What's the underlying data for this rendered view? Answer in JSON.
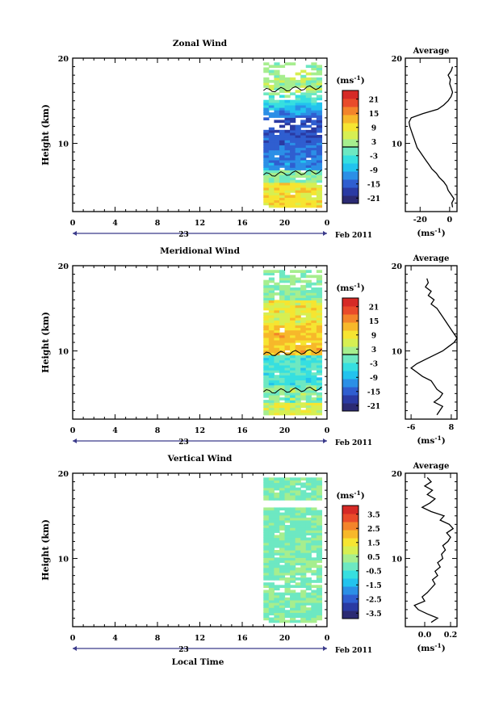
{
  "figure": {
    "xlabel_bottom": "Local Time",
    "date_label": "Feb 2011",
    "day_label": "23"
  },
  "chart_data": [
    {
      "type": "heatmap",
      "title": "Zonal Wind",
      "ylabel": "Height (km)",
      "xlabel": "Local Time",
      "xlim": [
        0,
        24
      ],
      "ylim": [
        2,
        20
      ],
      "xticks": [
        "0",
        "4",
        "8",
        "12",
        "16",
        "20",
        "0"
      ],
      "yticks": [
        "10",
        "20"
      ],
      "data_x_range": [
        18,
        23.5
      ],
      "colorbar": {
        "unit": "(ms⁻¹)",
        "ticks": [
          "21",
          "15",
          "9",
          "3",
          "-3",
          "-9",
          "-15",
          "-21"
        ],
        "range": [
          -24,
          24
        ],
        "zero_contour": true
      },
      "profile": {
        "title": "Average",
        "xlabel": "(ms⁻¹)",
        "xticks": [
          "-20",
          "0"
        ],
        "xlim": [
          -30,
          5
        ],
        "yticks": [
          "10",
          "20"
        ],
        "heights": [
          2.5,
          3,
          3.5,
          4,
          4.5,
          5,
          5.5,
          6,
          6.5,
          7,
          7.5,
          8,
          8.5,
          9,
          9.5,
          10,
          10.5,
          11,
          11.5,
          12,
          12.5,
          13,
          13.5,
          14,
          14.5,
          15,
          15.5,
          16,
          16.5,
          17,
          17.5,
          18,
          18.5,
          19
        ],
        "values": [
          2,
          1.5,
          3,
          1,
          -1,
          -2,
          -4,
          -7,
          -9,
          -12,
          -14,
          -16,
          -18,
          -20,
          -22,
          -23,
          -24,
          -25,
          -26,
          -27,
          -27.5,
          -26,
          -18,
          -8,
          -4,
          -1,
          1,
          2,
          1,
          0,
          0.5,
          -1,
          1,
          2
        ]
      }
    },
    {
      "type": "heatmap",
      "title": "Meridional Wind",
      "ylabel": "Height (km)",
      "xlabel": "Local Time",
      "xlim": [
        0,
        24
      ],
      "ylim": [
        2,
        20
      ],
      "xticks": [
        "0",
        "4",
        "8",
        "12",
        "16",
        "20",
        "0"
      ],
      "yticks": [
        "10",
        "20"
      ],
      "data_x_range": [
        18,
        23.5
      ],
      "colorbar": {
        "unit": "(ms⁻¹)",
        "ticks": [
          "21",
          "15",
          "9",
          "3",
          "-3",
          "-9",
          "-15",
          "-21"
        ],
        "range": [
          -24,
          24
        ],
        "zero_contour": true
      },
      "profile": {
        "title": "Average",
        "xlabel": "(ms⁻¹)",
        "xticks": [
          "-6",
          "8"
        ],
        "xlim": [
          -8,
          10
        ],
        "yticks": [
          "10",
          "20"
        ],
        "heights": [
          2.5,
          3,
          3.5,
          4,
          4.5,
          5,
          5.5,
          6,
          6.5,
          7,
          7.5,
          8,
          8.5,
          9,
          9.5,
          10,
          10.5,
          11,
          11.5,
          12,
          12.5,
          13,
          13.5,
          14,
          14.5,
          15,
          15.5,
          16,
          16.5,
          17,
          17.5,
          18,
          18.5
        ],
        "values": [
          3,
          4,
          5,
          2,
          4,
          5,
          3,
          2,
          1,
          -2,
          -4,
          -6,
          -4,
          -1,
          2,
          5,
          7,
          9,
          10,
          9,
          8,
          7,
          6,
          5,
          4,
          3,
          1,
          2,
          0,
          1,
          -1,
          0,
          -0.5
        ]
      }
    },
    {
      "type": "heatmap",
      "title": "Vertical Wind",
      "ylabel": "Height (km)",
      "xlabel": "Local Time",
      "xlim": [
        0,
        24
      ],
      "ylim": [
        2,
        20
      ],
      "xticks": [
        "0",
        "4",
        "8",
        "12",
        "16",
        "20",
        "0"
      ],
      "yticks": [
        "10",
        "20"
      ],
      "data_x_range": [
        18,
        23.5
      ],
      "colorbar": {
        "unit": "(ms⁻¹)",
        "ticks": [
          "3.5",
          "2.5",
          "1.5",
          "0.5",
          "-0.5",
          "-1.5",
          "-2.5",
          "-3.5"
        ],
        "range": [
          -4,
          4
        ],
        "zero_contour": false
      },
      "profile": {
        "title": "Average",
        "xlabel": "(ms⁻¹)",
        "xticks": [
          "0.0",
          "0.2"
        ],
        "xlim": [
          -0.15,
          0.25
        ],
        "yticks": [
          "10",
          "20"
        ],
        "heights": [
          2.5,
          3,
          3.5,
          4,
          4.5,
          5,
          5.5,
          6,
          6.5,
          7,
          7.5,
          8,
          8.5,
          9,
          9.5,
          10,
          10.5,
          11,
          11.5,
          12,
          12.5,
          13,
          13.5,
          14,
          14.5,
          15,
          15.5,
          16,
          16.5,
          17,
          17.5,
          18,
          18.5,
          19,
          19.5
        ],
        "values": [
          0.05,
          0.1,
          0.02,
          -0.05,
          -0.08,
          0,
          -0.02,
          0.02,
          0.05,
          0.08,
          0.06,
          0.1,
          0.08,
          0.12,
          0.1,
          0.14,
          0.13,
          0.16,
          0.14,
          0.18,
          0.2,
          0.17,
          0.22,
          0.19,
          0.12,
          0.15,
          0.05,
          -0.02,
          0.04,
          0.08,
          0.02,
          0.06,
          0.0,
          0.05,
          0.02
        ]
      }
    }
  ],
  "colors": {
    "colormap": [
      "#2b2a73",
      "#2a3aa3",
      "#2f5ed0",
      "#2b8fe6",
      "#22c3ee",
      "#36dfe0",
      "#6de8c2",
      "#a6ee8e",
      "#d7ef52",
      "#f6e531",
      "#f7b82a",
      "#f3842a",
      "#e94b2a",
      "#d62a26"
    ],
    "axis": "#000000",
    "date_bar": "#3a3a8a"
  }
}
